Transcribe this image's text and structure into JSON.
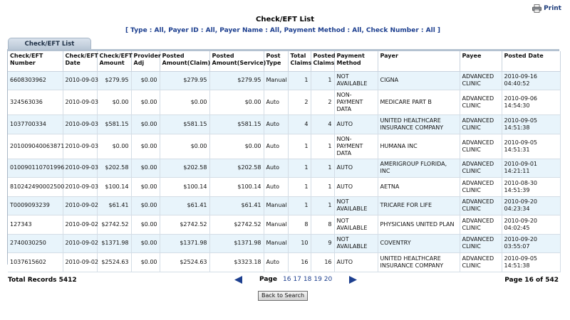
{
  "header": {
    "print_label": "Print",
    "title": "Check/EFT List",
    "filter": "[ Type : All, Payer ID : All, Payer Name : All, Payment Method : All, Check Number : All ]"
  },
  "tab": {
    "label": "Check/EFT List"
  },
  "table": {
    "columns": [
      "Check/EFT Number",
      "Check/EFT Date",
      "Check/EFT Amount",
      "Provider Adj",
      "Posted Amount(Claim)",
      "Posted Amount(Service)",
      "Post Type",
      "Total Claims",
      "Posted Claims",
      "Payment Method",
      "Payer",
      "Payee",
      "Posted Date"
    ],
    "rows": [
      [
        "6608303962",
        "2010-09-03",
        "$279.95",
        "$0.00",
        "$279.95",
        "$279.95",
        "Manual",
        "1",
        "1",
        "NOT AVAILABLE",
        "CIGNA",
        "ADVANCED CLINIC",
        "2010-09-16 04:40:52"
      ],
      [
        "324563036",
        "2010-09-03",
        "$0.00",
        "$0.00",
        "$0.00",
        "$0.00",
        "Auto",
        "2",
        "2",
        "NON-PAYMENT DATA",
        "MEDICARE PART B",
        "ADVANCED CLINIC",
        "2010-09-06 14:54:30"
      ],
      [
        "1037700334",
        "2010-09-03",
        "$581.15",
        "$0.00",
        "$581.15",
        "$581.15",
        "Auto",
        "4",
        "4",
        "AUTO",
        "UNITED HEALTHCARE INSURANCE COMPANY",
        "ADVANCED CLINIC",
        "2010-09-05 14:51:38"
      ],
      [
        "201009040063871",
        "2010-09-03",
        "$0.00",
        "$0.00",
        "$0.00",
        "$0.00",
        "Auto",
        "1",
        "1",
        "NON-PAYMENT DATA",
        "HUMANA INC",
        "ADVANCED CLINIC",
        "2010-09-05 14:51:31"
      ],
      [
        "010090110701996",
        "2010-09-03",
        "$202.58",
        "$0.00",
        "$202.58",
        "$202.58",
        "Auto",
        "1",
        "1",
        "AUTO",
        "AMERIGROUP FLORIDA, INC",
        "ADVANCED CLINIC",
        "2010-09-01 14:21:11"
      ],
      [
        "810242490002500",
        "2010-09-03",
        "$100.14",
        "$0.00",
        "$100.14",
        "$100.14",
        "Auto",
        "1",
        "1",
        "AUTO",
        "AETNA",
        "ADVANCED CLINIC",
        "2010-08-30 14:51:39"
      ],
      [
        "T0009093239",
        "2010-09-02",
        "$61.41",
        "$0.00",
        "$61.41",
        "$61.41",
        "Manual",
        "1",
        "1",
        "NOT AVAILABLE",
        "TRICARE FOR LIFE",
        "ADVANCED CLINIC",
        "2010-09-20 04:23:34"
      ],
      [
        "127343",
        "2010-09-02",
        "$2742.52",
        "$0.00",
        "$2742.52",
        "$2742.52",
        "Manual",
        "8",
        "8",
        "NOT AVAILABLE",
        "PHYSICIANS UNITED PLAN",
        "ADVANCED CLINIC",
        "2010-09-20 04:02:45"
      ],
      [
        "2740030250",
        "2010-09-02",
        "$1371.98",
        "$0.00",
        "$1371.98",
        "$1371.98",
        "Manual",
        "10",
        "9",
        "NOT AVAILABLE",
        "COVENTRY",
        "ADVANCED CLINIC",
        "2010-09-20 03:55:07"
      ],
      [
        "1037615602",
        "2010-09-02",
        "$2524.63",
        "$0.00",
        "$2524.63",
        "$3323.18",
        "Auto",
        "16",
        "16",
        "AUTO",
        "UNITED HEALTHCARE INSURANCE COMPANY",
        "ADVANCED CLINIC",
        "2010-09-05 14:51:38"
      ]
    ]
  },
  "footer": {
    "total_records": "Total Records 5412",
    "page_label": "Page",
    "pages": [
      "16",
      "17",
      "18",
      "19",
      "20"
    ],
    "current_page": "16",
    "page_of": "Page 16 of 542",
    "back_button": "Back to Search"
  },
  "colors": {
    "link": "#1d3f8f",
    "row_alt": "#e8f4fb",
    "arrow": "#1d3f8f"
  },
  "icons": {
    "print": "printer-icon",
    "prev": "arrow-left-icon",
    "next": "arrow-right-icon"
  }
}
